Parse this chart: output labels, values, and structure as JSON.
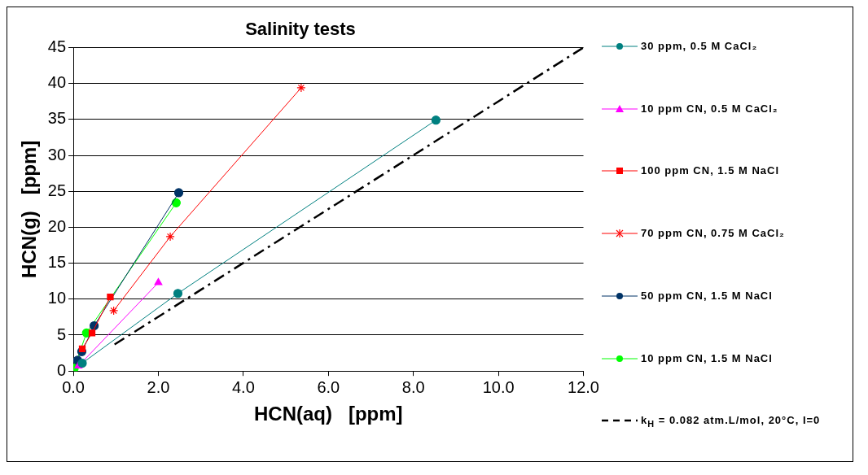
{
  "chart_data": {
    "type": "line",
    "title": "Salinity tests",
    "xlabel": "HCN(aq)   [ppm]",
    "ylabel": "HCN(g)   [ppm]",
    "xlim": [
      0,
      12
    ],
    "ylim": [
      0,
      45
    ],
    "xticks": [
      {
        "value": 0,
        "label": "0.0"
      },
      {
        "value": 2,
        "label": "2.0"
      },
      {
        "value": 4,
        "label": "4.0"
      },
      {
        "value": 6,
        "label": "6.0"
      },
      {
        "value": 8,
        "label": "8.0"
      },
      {
        "value": 10,
        "label": "10.0"
      },
      {
        "value": 12,
        "label": "12.0"
      }
    ],
    "yticks": [
      0,
      5,
      10,
      15,
      20,
      25,
      30,
      35,
      40,
      45
    ],
    "grid": "y",
    "legend": "right",
    "line_style": "solid",
    "series": [
      {
        "name": "30 ppm, 0.5 M CaCl₂",
        "color": "#008080",
        "marker": "circle",
        "x": [
          0.21,
          2.46,
          8.53
        ],
        "values": [
          1.1,
          10.8,
          34.9
        ]
      },
      {
        "name": "10 ppm CN, 0.5 M CaCl₂",
        "color": "#ff00ff",
        "marker": "triangle",
        "x": [
          0.12,
          2.0
        ],
        "values": [
          0.7,
          12.3
        ]
      },
      {
        "name": "100 ppm CN, 1.5 M NaCl",
        "color": "#ff0000",
        "marker": "square",
        "x": [
          0.21,
          0.44,
          0.87
        ],
        "values": [
          3.1,
          5.3,
          10.3
        ]
      },
      {
        "name": "70 ppm CN, 0.75 M CaCl₂",
        "color": "#ff0000",
        "marker": "cross",
        "x": [
          0.95,
          2.28,
          5.36
        ],
        "values": [
          8.4,
          18.7,
          39.4
        ]
      },
      {
        "name": "50 ppm CN, 1.5 M NaCl",
        "color": "#003366",
        "marker": "circle",
        "x": [
          0.1,
          0.2,
          0.49,
          2.48
        ],
        "values": [
          1.5,
          2.7,
          6.3,
          24.8
        ]
      },
      {
        "name": "10 ppm CN, 1.5 M NaCl",
        "color": "#00ff00",
        "marker": "circle",
        "x": [
          0.02,
          0.31,
          2.42
        ],
        "values": [
          0.4,
          5.3,
          23.4
        ]
      },
      {
        "name": "k$_{H}$ = 0.082 atm.L/mol, 20°C, I=0",
        "color": "#000000",
        "marker": "none",
        "line_style": "dashed",
        "x": [
          0.97,
          12
        ],
        "values": [
          3.7,
          45
        ]
      }
    ]
  }
}
